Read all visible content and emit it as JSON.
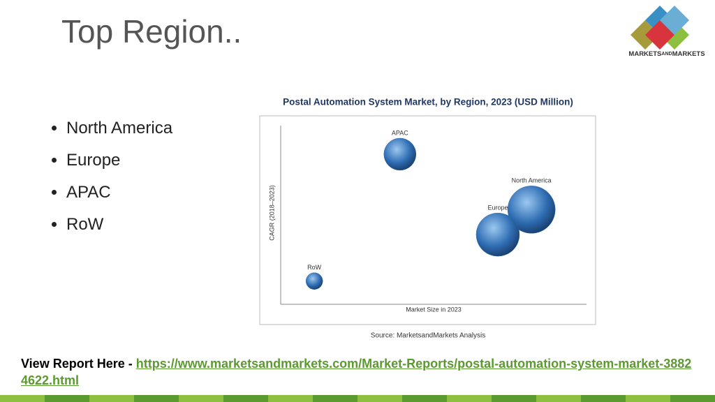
{
  "header": {
    "title": "Top Region..",
    "logo": [
      "MARKETS",
      "AND",
      "MARKETS"
    ]
  },
  "bullets": [
    "North America",
    "Europe",
    "APAC",
    "RoW"
  ],
  "chart_data": {
    "type": "bubble",
    "title": "Postal Automation System Market, by Region, 2023 (USD Million)",
    "x_label": "Market Size in 2023",
    "y_label": "CAGR (2018–2023)",
    "series": [
      {
        "name": "APAC",
        "x": 3.9,
        "y": 8.4,
        "size": 23
      },
      {
        "name": "North America",
        "x": 8.2,
        "y": 5.3,
        "size": 34
      },
      {
        "name": "Europe",
        "x": 7.1,
        "y": 3.9,
        "size": 31
      },
      {
        "name": "RoW",
        "x": 1.1,
        "y": 1.3,
        "size": 12
      }
    ],
    "xlim": [
      0,
      10
    ],
    "ylim": [
      0,
      10
    ],
    "color": "#2f6db3",
    "source": "Source: MarketsandMarkets Analysis"
  },
  "footer": {
    "lead": "View Report Here - ",
    "link": "https://www.marketsandmarkets.com/Market-Reports/postal-automation-system-market-38824622.html"
  }
}
